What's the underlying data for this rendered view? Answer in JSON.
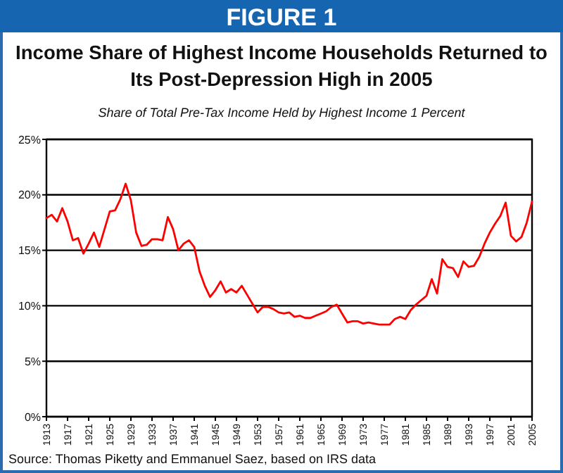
{
  "chart_data": {
    "type": "line",
    "title": "Income Share of Highest Income Households Returned to Its Post-Depression High in 2005",
    "subtitle": "Share of Total Pre-Tax Income Held by Highest Income 1 Percent",
    "annotations": [
      "FIGURE 1",
      "Source:  Thomas Piketty and Emmanuel Saez, based on IRS data"
    ],
    "x": [
      1913,
      1914,
      1915,
      1916,
      1917,
      1918,
      1919,
      1920,
      1921,
      1922,
      1923,
      1924,
      1925,
      1926,
      1927,
      1928,
      1929,
      1930,
      1931,
      1932,
      1933,
      1934,
      1935,
      1936,
      1937,
      1938,
      1939,
      1940,
      1941,
      1942,
      1943,
      1944,
      1945,
      1946,
      1947,
      1948,
      1949,
      1950,
      1951,
      1952,
      1953,
      1954,
      1955,
      1956,
      1957,
      1958,
      1959,
      1960,
      1961,
      1962,
      1963,
      1964,
      1965,
      1966,
      1967,
      1968,
      1969,
      1970,
      1971,
      1972,
      1973,
      1974,
      1975,
      1976,
      1977,
      1978,
      1979,
      1980,
      1981,
      1982,
      1983,
      1984,
      1985,
      1986,
      1987,
      1988,
      1989,
      1990,
      1991,
      1992,
      1993,
      1994,
      1995,
      1996,
      1997,
      1998,
      1999,
      2000,
      2001,
      2002,
      2003,
      2004,
      2005
    ],
    "series": [
      {
        "color": "#ff0000",
        "values": [
          17.9,
          18.2,
          17.6,
          18.8,
          17.6,
          15.9,
          16.1,
          14.7,
          15.6,
          16.6,
          15.3,
          16.9,
          18.5,
          18.6,
          19.6,
          21.0,
          19.5,
          16.6,
          15.4,
          15.5,
          16.0,
          16.0,
          15.9,
          18.0,
          16.9,
          15.0,
          15.6,
          15.9,
          15.3,
          13.1,
          11.8,
          10.8,
          11.4,
          12.2,
          11.2,
          11.5,
          11.2,
          11.8,
          11.0,
          10.2,
          9.4,
          9.9,
          9.9,
          9.7,
          9.4,
          9.3,
          9.4,
          9.0,
          9.1,
          8.9,
          8.9,
          9.1,
          9.3,
          9.5,
          9.9,
          10.1,
          9.3,
          8.5,
          8.6,
          8.6,
          8.4,
          8.5,
          8.4,
          8.3,
          8.3,
          8.3,
          8.8,
          9.0,
          8.8,
          9.6,
          10.1,
          10.5,
          10.9,
          12.4,
          11.1,
          14.2,
          13.5,
          13.4,
          12.6,
          14.0,
          13.5,
          13.6,
          14.4,
          15.6,
          16.6,
          17.4,
          18.1,
          19.3,
          16.3,
          15.8,
          16.2,
          17.5,
          19.4
        ]
      }
    ],
    "xlim": [
      1913,
      2005
    ],
    "xticks": [
      1913,
      1917,
      1921,
      1925,
      1929,
      1933,
      1937,
      1941,
      1945,
      1949,
      1953,
      1957,
      1961,
      1965,
      1969,
      1973,
      1977,
      1981,
      1985,
      1989,
      1993,
      1997,
      2001,
      2005
    ],
    "ylim": [
      0,
      25
    ],
    "yticks": [
      {
        "value": 0,
        "label": "0%"
      },
      {
        "value": 5,
        "label": "5%"
      },
      {
        "value": 10,
        "label": "10%"
      },
      {
        "value": 15,
        "label": "15%"
      },
      {
        "value": 20,
        "label": "20%"
      },
      {
        "value": 25,
        "label": "25%"
      }
    ],
    "grid": "y",
    "marker": "none",
    "line_style": "solid"
  }
}
